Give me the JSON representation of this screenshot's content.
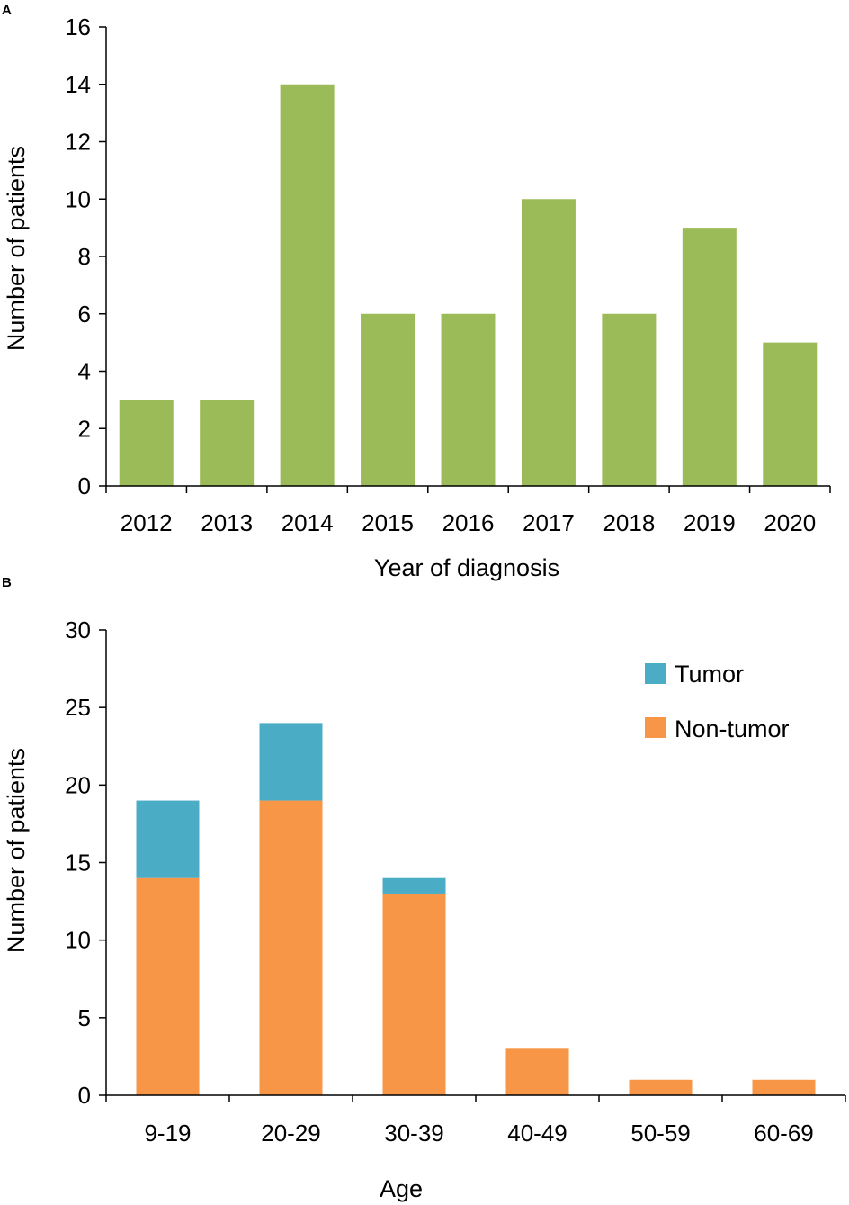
{
  "chart_data": [
    {
      "type": "bar",
      "panel_label": "A",
      "categories": [
        "2012",
        "2013",
        "2014",
        "2015",
        "2016",
        "2017",
        "2018",
        "2019",
        "2020"
      ],
      "values": [
        3,
        3,
        14,
        6,
        6,
        10,
        6,
        9,
        5
      ],
      "xlabel": "Year of diagnosis",
      "ylabel": "Number of patients",
      "ylim": [
        0,
        16
      ],
      "yticks": [
        "0",
        "2",
        "4",
        "6",
        "8",
        "10",
        "12",
        "14",
        "16"
      ],
      "ytick_values": [
        0,
        2,
        4,
        6,
        8,
        10,
        12,
        14,
        16
      ],
      "color": "#9bbb59",
      "grid": false
    },
    {
      "type": "bar",
      "stacked": true,
      "panel_label": "B",
      "categories": [
        "9-19",
        "20-29",
        "30-39",
        "40-49",
        "50-59",
        "60-69"
      ],
      "series": [
        {
          "name": "Non-tumor",
          "values": [
            14,
            19,
            13,
            3,
            1,
            1
          ],
          "color": "#f79646"
        },
        {
          "name": "Tumor",
          "values": [
            5,
            5,
            1,
            0,
            0,
            0
          ],
          "color": "#4bacc6"
        }
      ],
      "legend": [
        "Tumor",
        "Non-tumor"
      ],
      "legend_position": "top-right",
      "xlabel": "Age",
      "ylabel": "Number of patients",
      "ylim": [
        0,
        30
      ],
      "yticks": [
        "0",
        "5",
        "10",
        "15",
        "20",
        "25",
        "30"
      ],
      "ytick_values": [
        0,
        5,
        10,
        15,
        20,
        25,
        30
      ],
      "grid": false
    }
  ]
}
